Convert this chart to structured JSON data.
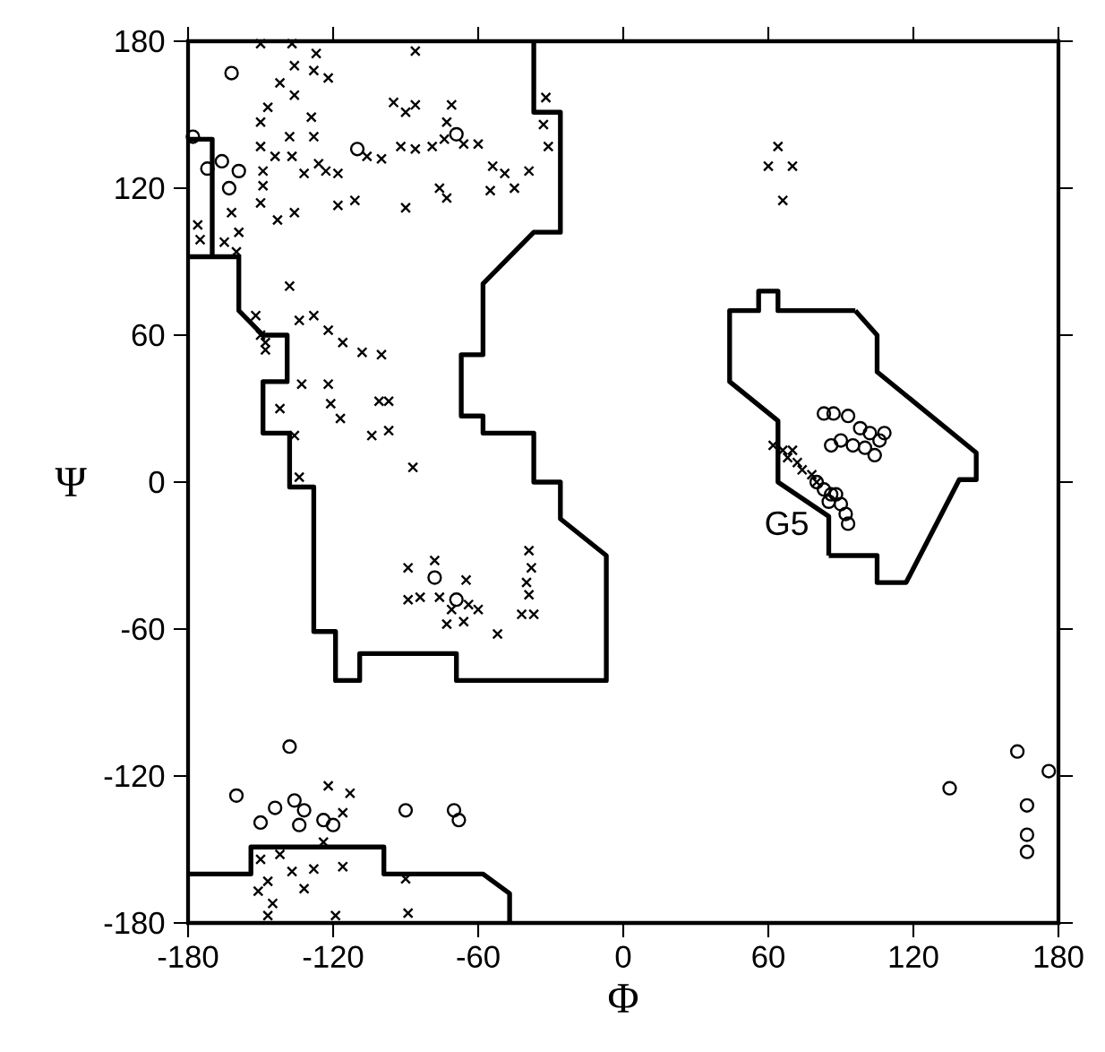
{
  "chart_data": {
    "type": "scatter",
    "xlabel": "Φ",
    "ylabel": "Ψ",
    "xlim": [
      -180,
      180
    ],
    "ylim": [
      -180,
      180
    ],
    "xticks": [
      -180,
      -120,
      -60,
      0,
      60,
      120,
      180
    ],
    "yticks": [
      -180,
      -120,
      -60,
      0,
      60,
      120,
      180
    ],
    "annotations": [
      {
        "text": "G5",
        "x": 80,
        "y": -3
      }
    ],
    "series": [
      {
        "marker": "cross",
        "color": "#000000",
        "x": [
          -150,
          -137,
          -127,
          -86,
          -136,
          -128,
          -122,
          -142,
          -136,
          -147,
          -129,
          -150,
          -138,
          -128,
          -150,
          -144,
          -137,
          -132,
          -123,
          -118,
          -149,
          -149,
          -150,
          -143,
          -136,
          -118,
          -111,
          -90,
          -76,
          -73,
          -55,
          -45,
          -39,
          -31,
          -33,
          -32,
          -95,
          -90,
          -86,
          -71,
          -73,
          -92,
          -86,
          -79,
          -74,
          -66,
          -60,
          -54,
          -49,
          -106,
          -100,
          -126,
          -176,
          -165,
          -175,
          -162,
          -159,
          -160,
          -138,
          -152,
          -148,
          -134,
          -128,
          -122,
          -116,
          -108,
          -100,
          -150,
          -148,
          -133,
          -122,
          -142,
          -121,
          -117,
          -101,
          -97,
          -104,
          -97,
          -136,
          -134,
          -87,
          -89,
          -78,
          -65,
          -89,
          -84,
          -76,
          -71,
          -64,
          -60,
          -73,
          -66,
          -52,
          -39,
          -38,
          -40,
          -39,
          -42,
          -37,
          -122,
          -113,
          -116,
          -124,
          -116,
          -150,
          -151,
          -145,
          -147,
          -137,
          -132,
          -128,
          -119,
          -90,
          -89,
          -147,
          -142,
          64,
          60,
          70,
          66,
          62,
          66,
          68,
          72,
          74,
          78,
          70,
          80
        ],
        "values": [
          179,
          179,
          175,
          176,
          170,
          168,
          165,
          163,
          158,
          153,
          149,
          147,
          141,
          141,
          137,
          133,
          133,
          126,
          127,
          126,
          127,
          121,
          114,
          107,
          110,
          113,
          115,
          112,
          120,
          116,
          119,
          120,
          127,
          137,
          146,
          157,
          155,
          151,
          154,
          154,
          147,
          137,
          136,
          137,
          140,
          138,
          138,
          129,
          126,
          133,
          132,
          130,
          105,
          98,
          99,
          110,
          102,
          94,
          80,
          68,
          57,
          66,
          68,
          62,
          57,
          53,
          52,
          60,
          54,
          40,
          40,
          30,
          32,
          26,
          33,
          33,
          19,
          21,
          19,
          2,
          6,
          -35,
          -32,
          -40,
          -48,
          -47,
          -47,
          -52,
          -50,
          -52,
          -58,
          -57,
          -62,
          -28,
          -35,
          -41,
          -46,
          -54,
          -54,
          -124,
          -127,
          -135,
          -147,
          -157,
          -154,
          -167,
          -172,
          -177,
          -159,
          -166,
          -158,
          -177,
          -162,
          -176,
          -163,
          -152,
          137,
          129,
          129,
          115,
          15,
          13,
          10,
          8,
          5,
          3,
          13,
          0
        ]
      },
      {
        "marker": "circle",
        "color": "#000000",
        "x": [
          -162,
          -178,
          -172,
          -166,
          -159,
          -163,
          -110,
          -69,
          -78,
          -69,
          -138,
          -160,
          -150,
          -144,
          -136,
          -132,
          -134,
          -124,
          -120,
          -90,
          -70,
          -68,
          135,
          163,
          176,
          167,
          167,
          167,
          83,
          87,
          93,
          98,
          102,
          106,
          108,
          95,
          100,
          90,
          86,
          104,
          83,
          86,
          85,
          90,
          92,
          93,
          88,
          80
        ],
        "values": [
          167,
          141,
          128,
          131,
          127,
          120,
          136,
          142,
          -39,
          -48,
          -108,
          -128,
          -139,
          -133,
          -130,
          -134,
          -140,
          -138,
          -140,
          -134,
          -134,
          -138,
          -125,
          -110,
          -118,
          -132,
          -144,
          -151,
          28,
          28,
          27,
          22,
          20,
          17,
          20,
          15,
          14,
          17,
          15,
          11,
          -3,
          -5,
          -8,
          -9,
          -13,
          -17,
          -5,
          0
        ]
      },
      {
        "type": "line",
        "color": "#000000",
        "x": [
          -180,
          -170,
          -170,
          -159,
          -159,
          -149,
          -139,
          -139,
          -149,
          -149,
          -138,
          -138,
          -128,
          -128,
          -119,
          -119,
          -109,
          -109,
          -69,
          -69,
          -7,
          -7,
          -26,
          -26,
          -37,
          -37,
          -58,
          -58,
          -67,
          -67,
          -58,
          -58,
          -37,
          -26,
          -26,
          -37,
          -37,
          null,
          -180,
          -170
        ],
        "values": [
          140,
          140,
          92,
          92,
          70,
          60,
          60,
          41,
          41,
          20,
          20,
          -2,
          -2,
          -61,
          -61,
          -81,
          -81,
          -70,
          -70,
          -81,
          -81,
          -30,
          -15,
          0,
          0,
          20,
          20,
          27,
          27,
          52,
          52,
          81,
          102,
          102,
          151,
          151,
          180,
          null,
          92,
          92
        ]
      },
      {
        "type": "line",
        "color": "#000000",
        "x": [
          -180,
          -154,
          -154,
          -99,
          -99,
          -58,
          -47,
          -47
        ],
        "values": [
          -160,
          -160,
          -149,
          -149,
          -160,
          -160,
          -168,
          -180
        ]
      },
      {
        "type": "line",
        "color": "#000000",
        "x": [
          96,
          105,
          105,
          146,
          146,
          139,
          117,
          105,
          105,
          85
        ],
        "values": [
          70,
          60,
          45,
          12,
          1,
          1,
          -41,
          -41,
          -30,
          -30
        ]
      },
      {
        "type": "line",
        "color": "#000000",
        "x": [
          85,
          85,
          64,
          64,
          44,
          44,
          56,
          56,
          64,
          64,
          96
        ],
        "values": [
          -30,
          -14,
          0,
          25,
          41,
          70,
          70,
          78,
          78,
          70,
          70
        ]
      }
    ]
  }
}
